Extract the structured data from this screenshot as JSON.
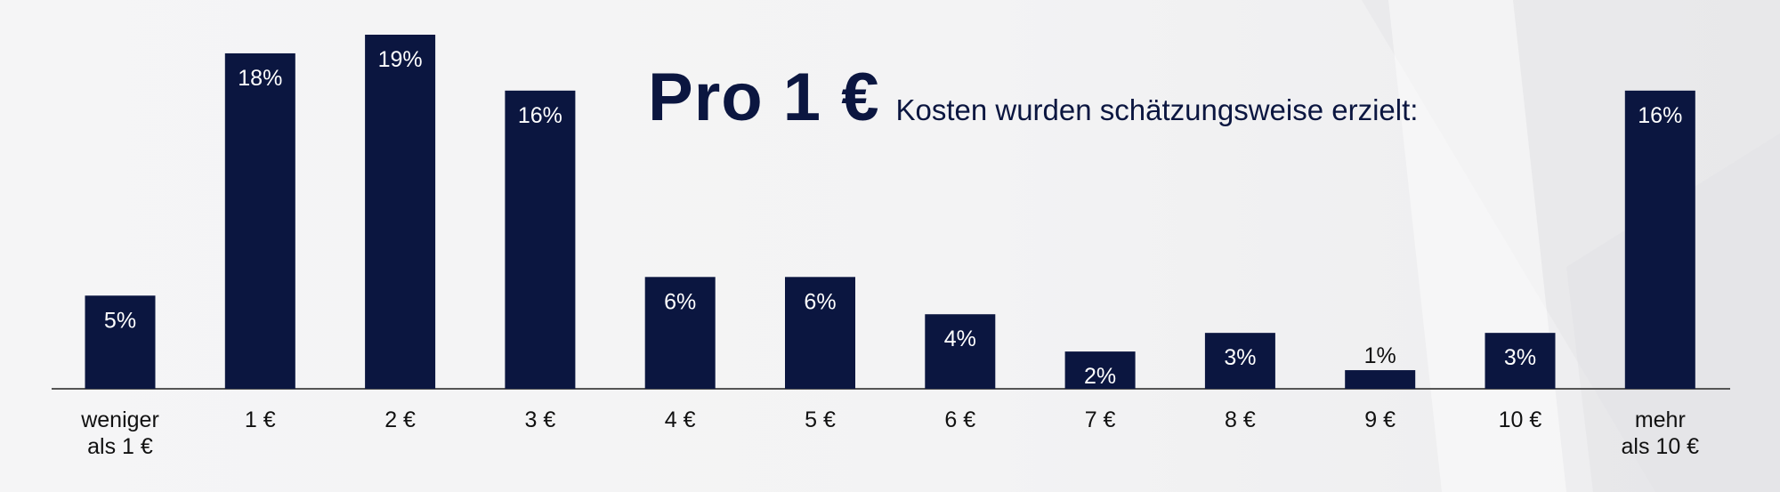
{
  "title": {
    "main": "Pro 1 €",
    "sub": "Kosten wurden schätzungsweise erzielt:"
  },
  "colors": {
    "bar": "#0b1640",
    "bar_label": "#ffffff",
    "axis": "#555555",
    "title": "#0b1640"
  },
  "chart_data": {
    "type": "bar",
    "title": "Pro 1 € Kosten wurden schätzungsweise erzielt:",
    "categories": [
      "weniger als 1 €",
      "1 €",
      "2 €",
      "3 €",
      "4 €",
      "5 €",
      "6 €",
      "7 €",
      "8 €",
      "9 €",
      "10 €",
      "mehr als 10 €"
    ],
    "category_lines": [
      [
        "weniger",
        "als 1 €"
      ],
      [
        "1 €"
      ],
      [
        "2 €"
      ],
      [
        "3 €"
      ],
      [
        "4 €"
      ],
      [
        "5 €"
      ],
      [
        "6 €"
      ],
      [
        "7 €"
      ],
      [
        "8 €"
      ],
      [
        "9 €"
      ],
      [
        "10 €"
      ],
      [
        "mehr",
        "als 10 €"
      ]
    ],
    "values": [
      5,
      18,
      19,
      16,
      6,
      6,
      4,
      2,
      3,
      1,
      3,
      16
    ],
    "data_labels": [
      "5%",
      "18%",
      "19%",
      "16%",
      "6%",
      "6%",
      "4%",
      "2%",
      "3%",
      "1%",
      "3%",
      "16%"
    ],
    "unit": "%",
    "xlabel": "",
    "ylabel": "",
    "ylim": [
      0,
      19
    ],
    "grid": false,
    "legend": "none"
  }
}
